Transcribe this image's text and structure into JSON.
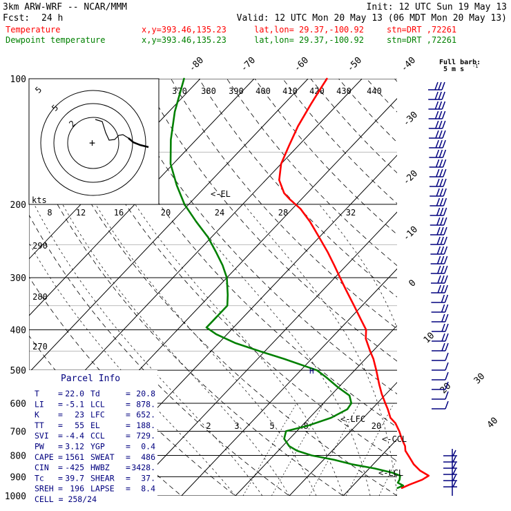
{
  "header": {
    "model": "3km ARW-WRF -- NCAR/MMM",
    "init": "Init: 12 UTC Sun 19 May 13",
    "fcst_label": "Fcst:",
    "fcst_value": "24 h",
    "valid": "Valid: 12 UTC Mon 20 May 13 (06 MDT Mon 20 May 13)",
    "temperature": {
      "label": "Temperature",
      "xy": "x,y=393.46,135.23",
      "latlon": "lat,lon= 29.37,-100.92",
      "stn": "stn=DRT ,72261",
      "color": "#ff0000"
    },
    "dewpoint": {
      "label": "Dewpoint temperature",
      "xy": "x,y=393.46,135.23",
      "latlon": "lat,lon= 29.37,-100.92",
      "stn": "stn=DRT ,72261",
      "color": "#008000"
    }
  },
  "barb_legend": {
    "line1": "Full barb:",
    "line2": "5 m s"
  },
  "parcel_info": {
    "title": "Parcel Info",
    "rows": [
      {
        "k1": "T",
        "v1": "22.0",
        "k2": "Td",
        "v2": "20.8"
      },
      {
        "k1": "LI",
        "v1": "-5.1",
        "k2": "LCL",
        "v2": "878."
      },
      {
        "k1": "K",
        "v1": "23",
        "k2": "LFC",
        "v2": "652."
      },
      {
        "k1": "TT",
        "v1": "55",
        "k2": "EL",
        "v2": "188."
      },
      {
        "k1": "SVI",
        "v1": "-4.4",
        "k2": "CCL",
        "v2": "729."
      },
      {
        "k1": "PW",
        "v1": "3.12",
        "k2": "YGP",
        "v2": "0.4"
      },
      {
        "k1": "CAPE",
        "v1": "1561",
        "k2": "SWEAT",
        "v2": "486"
      },
      {
        "k1": "CIN",
        "v1": "-425",
        "k2": "HWBZ",
        "v2": "3428."
      },
      {
        "k1": "Tc",
        "v1": "39.7",
        "k2": "SHEAR",
        "v2": "37."
      },
      {
        "k1": "SREH",
        "v1": "196",
        "k2": "LAPSE",
        "v2": "8.4"
      }
    ],
    "cell": "CELL = 258/24"
  },
  "level_labels": {
    "el": "<-EL",
    "lfc": "<-LFC",
    "ccl": "<-CCL",
    "lcl": "<-LCL",
    "h": "H"
  },
  "hodograph": {
    "units": "kts",
    "ring_labels": [
      "5",
      "5",
      "2"
    ],
    "speed_ticks": [
      "8",
      "12",
      "16",
      "20",
      "24",
      "28",
      "32"
    ]
  },
  "chart_data": {
    "type": "line",
    "plot": "skew-T log-p",
    "ylabel": "",
    "xlabel": "",
    "y_scale": "log",
    "ylim": [
      1000,
      100
    ],
    "pressure_ticks": [
      100,
      200,
      300,
      400,
      500,
      600,
      700,
      800,
      900,
      1000
    ],
    "temperature_ticks": [
      -80,
      -70,
      -60,
      -50,
      -40,
      -30,
      -20,
      -10,
      0,
      10,
      20,
      30,
      40
    ],
    "theta_labels": [
      "370",
      "380",
      "390",
      "400",
      "410",
      "420",
      "430",
      "440"
    ],
    "theta_side_labels": [
      "290",
      "280",
      "270"
    ],
    "mixing_ratio_labels": [
      "2",
      "3",
      "5",
      "8",
      "20"
    ],
    "series": [
      {
        "name": "Temperature",
        "color": "#ff0000",
        "points": [
          {
            "p": 958,
            "t": 19.5
          },
          {
            "p": 940,
            "t": 20.3
          },
          {
            "p": 915,
            "t": 21.8
          },
          {
            "p": 895,
            "t": 22.3
          },
          {
            "p": 870,
            "t": 19.8
          },
          {
            "p": 840,
            "t": 17.5
          },
          {
            "p": 810,
            "t": 15.6
          },
          {
            "p": 780,
            "t": 13.6
          },
          {
            "p": 760,
            "t": 12.7
          },
          {
            "p": 730,
            "t": 10.8
          },
          {
            "p": 700,
            "t": 9.0
          },
          {
            "p": 670,
            "t": 6.9
          },
          {
            "p": 650,
            "t": 5.0
          },
          {
            "p": 620,
            "t": 3.0
          },
          {
            "p": 600,
            "t": 1.5
          },
          {
            "p": 570,
            "t": -0.8
          },
          {
            "p": 540,
            "t": -3.0
          },
          {
            "p": 500,
            "t": -6.0
          },
          {
            "p": 470,
            "t": -8.5
          },
          {
            "p": 450,
            "t": -10.5
          },
          {
            "p": 420,
            "t": -13.5
          },
          {
            "p": 400,
            "t": -15.0
          },
          {
            "p": 380,
            "t": -17.5
          },
          {
            "p": 350,
            "t": -21.5
          },
          {
            "p": 320,
            "t": -25.9
          },
          {
            "p": 300,
            "t": -29.0
          },
          {
            "p": 280,
            "t": -32.3
          },
          {
            "p": 260,
            "t": -35.9
          },
          {
            "p": 240,
            "t": -40.0
          },
          {
            "p": 220,
            "t": -44.5
          },
          {
            "p": 205,
            "t": -48.5
          },
          {
            "p": 195,
            "t": -52.0
          },
          {
            "p": 188,
            "t": -54.3
          },
          {
            "p": 175,
            "t": -57.5
          },
          {
            "p": 160,
            "t": -60.0
          },
          {
            "p": 145,
            "t": -61.7
          },
          {
            "p": 130,
            "t": -63.5
          },
          {
            "p": 115,
            "t": -65.0
          },
          {
            "p": 105,
            "t": -66.0
          },
          {
            "p": 100,
            "t": -66.5
          }
        ]
      },
      {
        "name": "Dewpoint temperature",
        "color": "#008000",
        "points": [
          {
            "p": 958,
            "t": 18.7
          },
          {
            "p": 945,
            "t": 19.3
          },
          {
            "p": 930,
            "t": 17.8
          },
          {
            "p": 915,
            "t": 17.6
          },
          {
            "p": 895,
            "t": 17.0
          },
          {
            "p": 880,
            "t": 15.0
          },
          {
            "p": 860,
            "t": 11.0
          },
          {
            "p": 840,
            "t": 6.0
          },
          {
            "p": 820,
            "t": 2.0
          },
          {
            "p": 800,
            "t": -3.0
          },
          {
            "p": 780,
            "t": -6.5
          },
          {
            "p": 760,
            "t": -8.8
          },
          {
            "p": 730,
            "t": -11.0
          },
          {
            "p": 700,
            "t": -12.0
          },
          {
            "p": 680,
            "t": -9.0
          },
          {
            "p": 650,
            "t": -6.0
          },
          {
            "p": 620,
            "t": -4.5
          },
          {
            "p": 600,
            "t": -4.8
          },
          {
            "p": 575,
            "t": -6.5
          },
          {
            "p": 550,
            "t": -10.0
          },
          {
            "p": 520,
            "t": -14.0
          },
          {
            "p": 500,
            "t": -17.0
          },
          {
            "p": 470,
            "t": -25.0
          },
          {
            "p": 450,
            "t": -31.0
          },
          {
            "p": 430,
            "t": -37.0
          },
          {
            "p": 410,
            "t": -42.0
          },
          {
            "p": 395,
            "t": -45.0
          },
          {
            "p": 380,
            "t": -45.0
          },
          {
            "p": 350,
            "t": -45.0
          },
          {
            "p": 330,
            "t": -46.8
          },
          {
            "p": 300,
            "t": -50.0
          },
          {
            "p": 280,
            "t": -53.0
          },
          {
            "p": 260,
            "t": -56.6
          },
          {
            "p": 240,
            "t": -60.6
          },
          {
            "p": 220,
            "t": -65.6
          },
          {
            "p": 200,
            "t": -70.8
          },
          {
            "p": 180,
            "t": -75.6
          },
          {
            "p": 160,
            "t": -80.5
          },
          {
            "p": 140,
            "t": -84.7
          },
          {
            "p": 120,
            "t": -88.9
          },
          {
            "p": 100,
            "t": -93.0
          }
        ]
      }
    ]
  }
}
